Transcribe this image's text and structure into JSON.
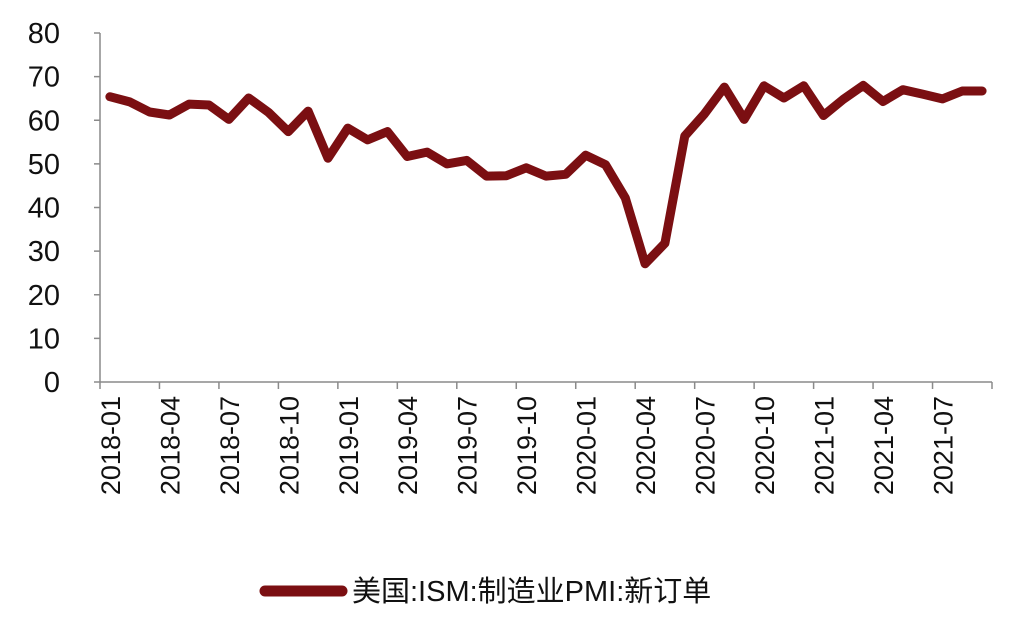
{
  "chart_data": {
    "type": "line",
    "title": "",
    "xlabel": "",
    "ylabel": "",
    "ylim": [
      0,
      80
    ],
    "yticks": [
      0,
      10,
      20,
      30,
      40,
      50,
      60,
      70,
      80
    ],
    "grid": false,
    "legend": "bottom",
    "x": [
      "2018-01",
      "2018-02",
      "2018-03",
      "2018-04",
      "2018-05",
      "2018-06",
      "2018-07",
      "2018-08",
      "2018-09",
      "2018-10",
      "2018-11",
      "2018-12",
      "2019-01",
      "2019-02",
      "2019-03",
      "2019-04",
      "2019-05",
      "2019-06",
      "2019-07",
      "2019-08",
      "2019-09",
      "2019-10",
      "2019-11",
      "2019-12",
      "2020-01",
      "2020-02",
      "2020-03",
      "2020-04",
      "2020-05",
      "2020-06",
      "2020-07",
      "2020-08",
      "2020-09",
      "2020-10",
      "2020-11",
      "2020-12",
      "2021-01",
      "2021-02",
      "2021-03",
      "2021-04",
      "2021-05",
      "2021-06",
      "2021-07",
      "2021-08",
      "2021-09"
    ],
    "xtick_labels": [
      "2018-01",
      "2018-04",
      "2018-07",
      "2018-10",
      "2019-01",
      "2019-04",
      "2019-07",
      "2019-10",
      "2020-01",
      "2020-04",
      "2020-07",
      "2020-10",
      "2021-01",
      "2021-04",
      "2021-07"
    ],
    "series": [
      {
        "name": "美国:ISM:制造业PMI:新订单",
        "color": "#7b0f12",
        "values": [
          65.4,
          64.2,
          61.9,
          61.2,
          63.7,
          63.5,
          60.2,
          65.1,
          61.8,
          57.4,
          62.1,
          51.3,
          58.2,
          55.5,
          57.4,
          51.7,
          52.7,
          50.0,
          50.8,
          47.2,
          47.3,
          49.1,
          47.2,
          47.6,
          52.0,
          49.8,
          42.2,
          27.1,
          31.8,
          56.4,
          61.5,
          67.6,
          60.2,
          67.9,
          65.1,
          67.9,
          61.1,
          64.8,
          68.0,
          64.3,
          67.0,
          66.0,
          64.9,
          66.7,
          66.7
        ]
      }
    ]
  }
}
